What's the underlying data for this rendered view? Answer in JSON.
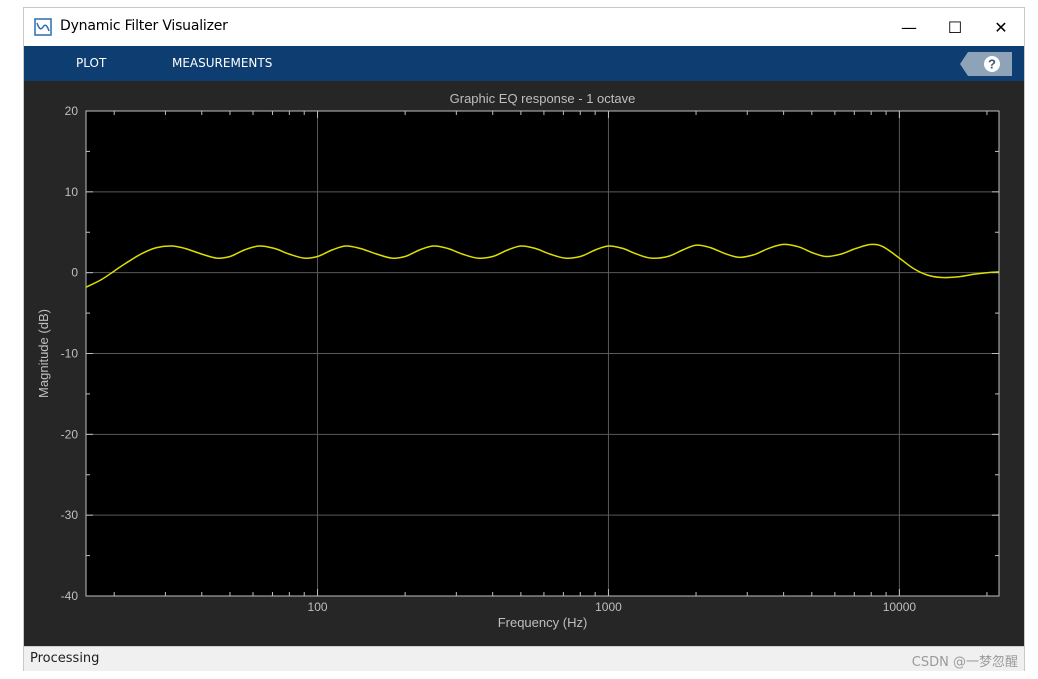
{
  "window": {
    "title": "Dynamic Filter Visualizer",
    "minimize_glyph": "—",
    "maximize_glyph": "☐",
    "close_glyph": "✕"
  },
  "toolstrip": {
    "tabs": [
      {
        "label": "PLOT"
      },
      {
        "label": "MEASUREMENTS"
      }
    ],
    "help_icon": "question-icon"
  },
  "colors": {
    "toolstrip_bg": "#0e3d72",
    "figure_bg": "#262626",
    "axes_bg": "#000000",
    "grid": "#5a5a5a",
    "axis_text": "#bfbfbf",
    "curve": "#dede00"
  },
  "status": {
    "text": "Processing",
    "watermark": "CSDN @一梦忽醒"
  },
  "chart_data": {
    "type": "line",
    "title": "Graphic EQ response - 1 octave",
    "xlabel": "Frequency (Hz)",
    "ylabel": "Magnitude (dB)",
    "xscale": "log",
    "xlim": [
      16,
      22000
    ],
    "ylim": [
      -40,
      20
    ],
    "xticks": [
      100,
      1000,
      10000
    ],
    "xtick_labels": [
      "100",
      "1000",
      "10000"
    ],
    "yticks": [
      -40,
      -30,
      -20,
      -10,
      0,
      10,
      20
    ],
    "ytick_labels": [
      "-40",
      "-30",
      "-20",
      "-10",
      "0",
      "10",
      "20"
    ],
    "grid": true,
    "series": [
      {
        "color": "#dede00",
        "x": [
          16,
          18,
          20,
          22,
          25,
          28,
          31.5,
          35,
          40,
          45,
          50,
          56,
          63,
          71,
          80,
          90,
          100,
          112,
          125,
          140,
          160,
          180,
          200,
          224,
          250,
          280,
          315,
          355,
          400,
          450,
          500,
          560,
          630,
          710,
          800,
          900,
          1000,
          1120,
          1250,
          1400,
          1600,
          1800,
          2000,
          2240,
          2500,
          2800,
          3150,
          3550,
          4000,
          4500,
          5000,
          5600,
          6300,
          7100,
          8000,
          8800,
          10000,
          11200,
          12500,
          14000,
          16000,
          18000,
          20000,
          22000
        ],
        "y": [
          -1.8,
          -0.9,
          0.2,
          1.2,
          2.4,
          3.1,
          3.3,
          3.0,
          2.3,
          1.8,
          2.0,
          2.8,
          3.3,
          3.0,
          2.3,
          1.8,
          2.0,
          2.8,
          3.3,
          3.0,
          2.3,
          1.8,
          2.0,
          2.8,
          3.3,
          3.0,
          2.3,
          1.8,
          2.0,
          2.8,
          3.3,
          3.0,
          2.3,
          1.8,
          2.0,
          2.8,
          3.3,
          3.0,
          2.3,
          1.8,
          2.0,
          2.8,
          3.4,
          3.1,
          2.4,
          1.9,
          2.2,
          3.0,
          3.5,
          3.2,
          2.5,
          2.0,
          2.3,
          3.0,
          3.5,
          3.2,
          1.8,
          0.5,
          -0.3,
          -0.6,
          -0.5,
          -0.2,
          0.0,
          0.1
        ]
      }
    ]
  }
}
